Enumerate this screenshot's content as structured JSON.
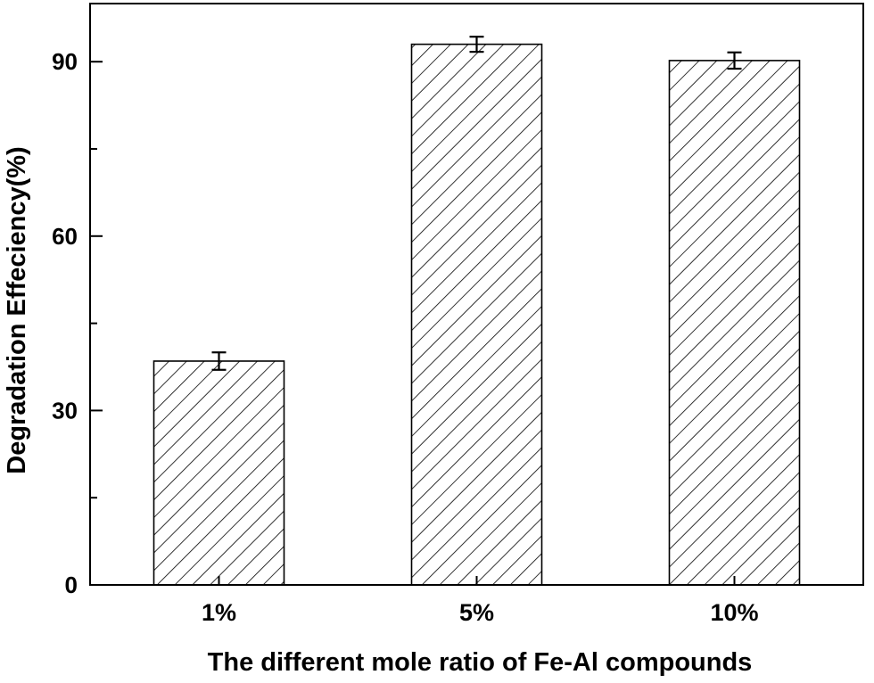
{
  "chart_data": {
    "type": "bar",
    "categories": [
      "1%",
      "5%",
      "10%"
    ],
    "values": [
      38.5,
      93.0,
      90.2
    ],
    "errors": [
      1.5,
      1.3,
      1.4
    ],
    "xlabel": "The different mole ratio of Fe-Al compounds",
    "ylabel": "Degradation Effeciency(%)",
    "ylim": [
      0,
      100
    ],
    "yticks": [
      0,
      30,
      60,
      90
    ],
    "yticks_minor": [
      15,
      45,
      75
    ],
    "yticks_labels": [
      "0",
      "30",
      "60",
      "90"
    ],
    "bar_fill": "hatched-diagonal",
    "bar_color": "#000000",
    "grid": false,
    "legend": "none"
  }
}
